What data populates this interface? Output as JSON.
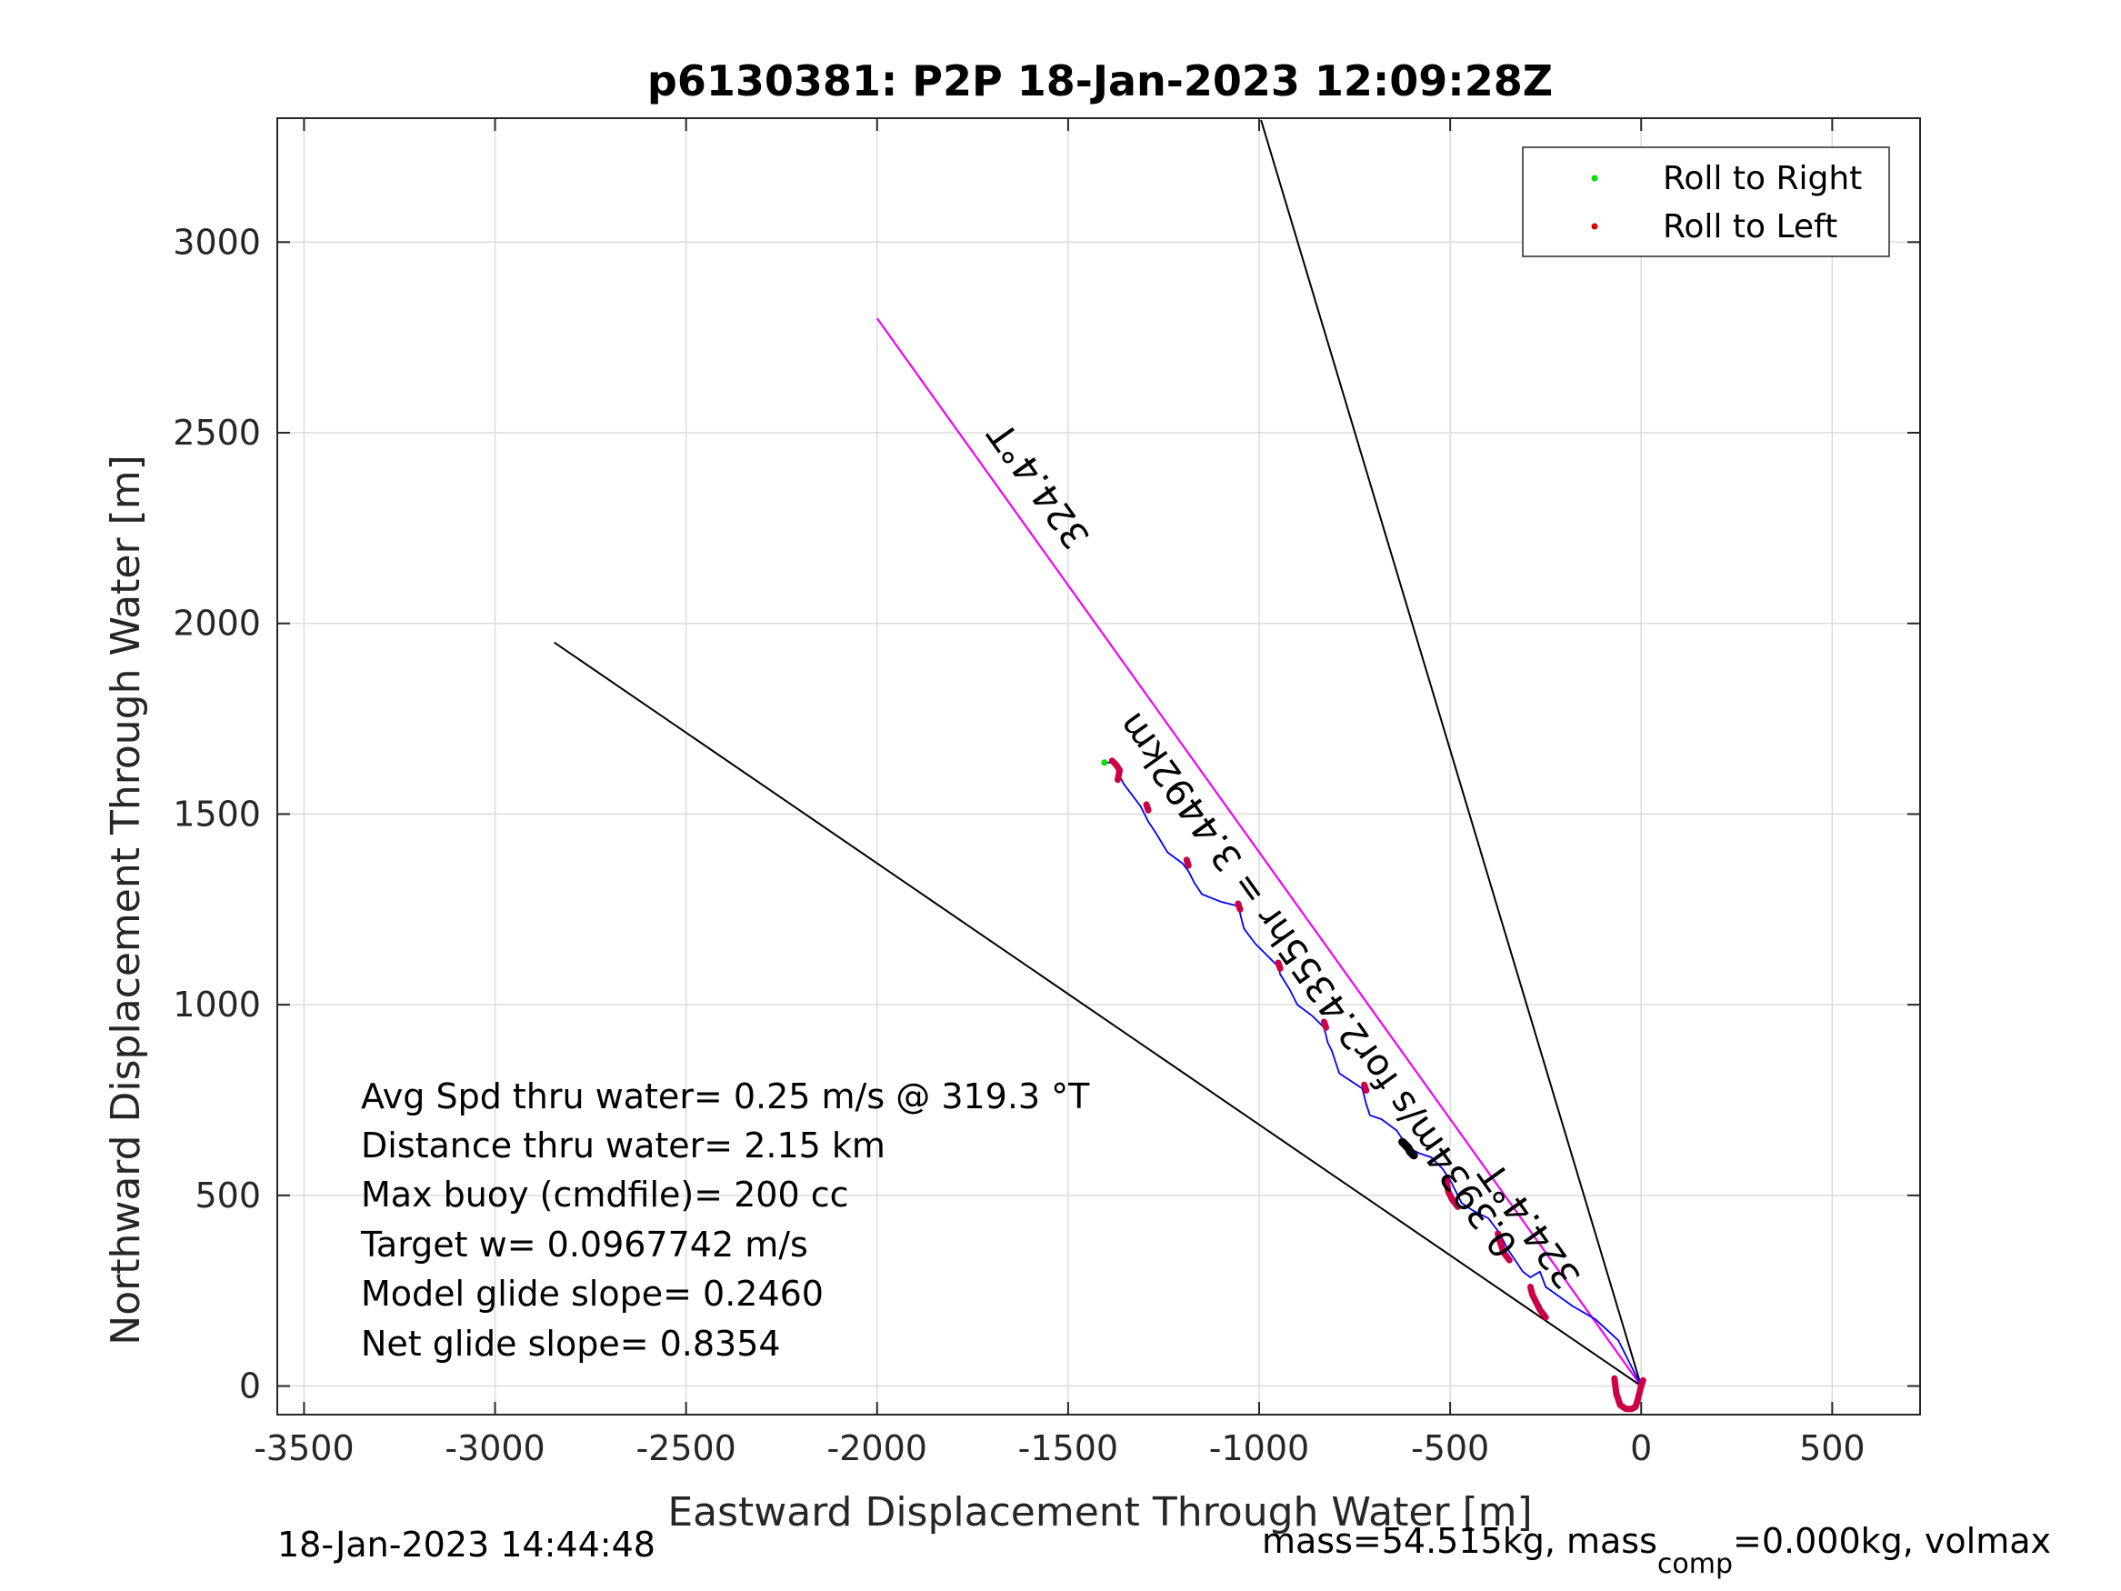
{
  "chart_data": {
    "type": "line",
    "title": "p6130381: P2P 18-Jan-2023 12:09:28Z",
    "xlabel": "Eastward Displacement Through Water [m]",
    "ylabel": "Northward Displacement Through Water [m]",
    "xlim": [
      -3570,
      730
    ],
    "ylim": [
      -75,
      3325
    ],
    "xticks": [
      -3500,
      -3000,
      -2500,
      -2000,
      -1500,
      -1000,
      -500,
      0,
      500
    ],
    "yticks": [
      0,
      500,
      1000,
      1500,
      2000,
      2500,
      3000
    ],
    "grid": true,
    "legend_position": "top-right",
    "legend": [
      {
        "label": "Roll to Right",
        "color": "#00e000"
      },
      {
        "label": "Roll to Left",
        "color": "#e00000"
      }
    ],
    "lines": [
      {
        "id": "heading-line",
        "color": "#000000",
        "x": [
          0,
          -2000
        ],
        "y": [
          0,
          2800
        ]
      },
      {
        "id": "bearing-line",
        "color": "#ff00ff",
        "x": [
          0,
          -2000
        ],
        "y": [
          0,
          2800
        ]
      },
      {
        "id": "cone-left",
        "color": "#000000",
        "x": [
          0,
          -2845
        ],
        "y": [
          0,
          1950
        ]
      },
      {
        "id": "cone-right",
        "color": "#000000",
        "x": [
          0,
          -995
        ],
        "y": [
          0,
          3320
        ]
      }
    ],
    "track": {
      "color": "#0000ff",
      "x": [
        0,
        -60,
        -120,
        -180,
        -250,
        -265,
        -290,
        -310,
        -330,
        -350,
        -370,
        -400,
        -440,
        -470,
        -490,
        -500,
        -520,
        -550,
        -580,
        -610,
        -640,
        -680,
        -710,
        -720,
        -730,
        -760,
        -790,
        -810,
        -820,
        -830,
        -860,
        -900,
        -920,
        -945,
        -950,
        -980,
        -1010,
        -1040,
        -1050,
        -1060,
        -1100,
        -1150,
        -1170,
        -1185,
        -1200,
        -1240,
        -1270,
        -1290,
        -1310,
        -1340,
        -1355,
        -1365,
        -1380,
        -1400
      ],
      "y": [
        0,
        120,
        175,
        210,
        260,
        300,
        285,
        300,
        330,
        360,
        400,
        440,
        460,
        480,
        520,
        540,
        570,
        600,
        610,
        625,
        670,
        700,
        710,
        740,
        780,
        800,
        820,
        880,
        900,
        940,
        970,
        1000,
        1040,
        1080,
        1100,
        1130,
        1160,
        1200,
        1240,
        1260,
        1270,
        1290,
        1320,
        1350,
        1370,
        1400,
        1450,
        1480,
        1520,
        1560,
        1580,
        1600,
        1635,
        1635
      ]
    },
    "roll_left_segments": [
      {
        "x": [
          -70,
          -65,
          -55,
          -40,
          -25,
          -15,
          -10,
          -5,
          0,
          5
        ],
        "y": [
          20,
          -20,
          -50,
          -60,
          -60,
          -55,
          -40,
          -20,
          0,
          15
        ]
      },
      {
        "x": [
          -250,
          -265,
          -275,
          -285,
          -290
        ],
        "y": [
          180,
          200,
          220,
          240,
          260
        ]
      },
      {
        "x": [
          -345,
          -360,
          -370,
          -375
        ],
        "y": [
          330,
          350,
          380,
          400
        ]
      },
      {
        "x": [
          -480,
          -495,
          -505,
          -510
        ],
        "y": [
          470,
          490,
          510,
          540
        ]
      },
      {
        "x": [
          -720,
          -725
        ],
        "y": [
          775,
          790
        ]
      },
      {
        "x": [
          -825,
          -830
        ],
        "y": [
          940,
          955
        ]
      },
      {
        "x": [
          -945,
          -950
        ],
        "y": [
          1095,
          1110
        ]
      },
      {
        "x": [
          -1050,
          -1055
        ],
        "y": [
          1250,
          1265
        ]
      },
      {
        "x": [
          -1185,
          -1190
        ],
        "y": [
          1365,
          1380
        ]
      },
      {
        "x": [
          -1290,
          -1295
        ],
        "y": [
          1510,
          1525
        ]
      },
      {
        "x": [
          -1370,
          -1365,
          -1375,
          -1385
        ],
        "y": [
          1590,
          1615,
          1630,
          1640
        ]
      }
    ],
    "roll_right_points": [
      {
        "x": -1405,
        "y": 1635
      }
    ],
    "black_segment": {
      "x": [
        -595,
        -605,
        -610,
        -625
      ],
      "y": [
        605,
        615,
        625,
        640
      ]
    },
    "line_labels": [
      {
        "text": "324.4°T",
        "x": -1550,
        "y": 2380,
        "rotate": 234.5
      },
      {
        "text": "324.4°T",
        "x": -265,
        "y": 440,
        "rotate": 234.5
      },
      {
        "text": "0.3934m/s for2.4355hr = 3.4492km",
        "x": -820,
        "y": 1070,
        "rotate": 234.5
      }
    ]
  },
  "stats": [
    "Avg Spd thru water=  0.25 m/s @ 319.3 °T",
    "Distance thru water=  2.15 km",
    "Max buoy (cmdfile)= 200 cc",
    "Target w= 0.0967742 m/s",
    "Model glide slope= 0.2460",
    "Net glide slope= 0.8354"
  ],
  "footer": {
    "timestamp": "18-Jan-2023 14:44:48",
    "mass_text_a": "mass=54.515kg, mass",
    "mass_sub": "comp",
    "mass_text_b": "=0.000kg, volmax"
  }
}
